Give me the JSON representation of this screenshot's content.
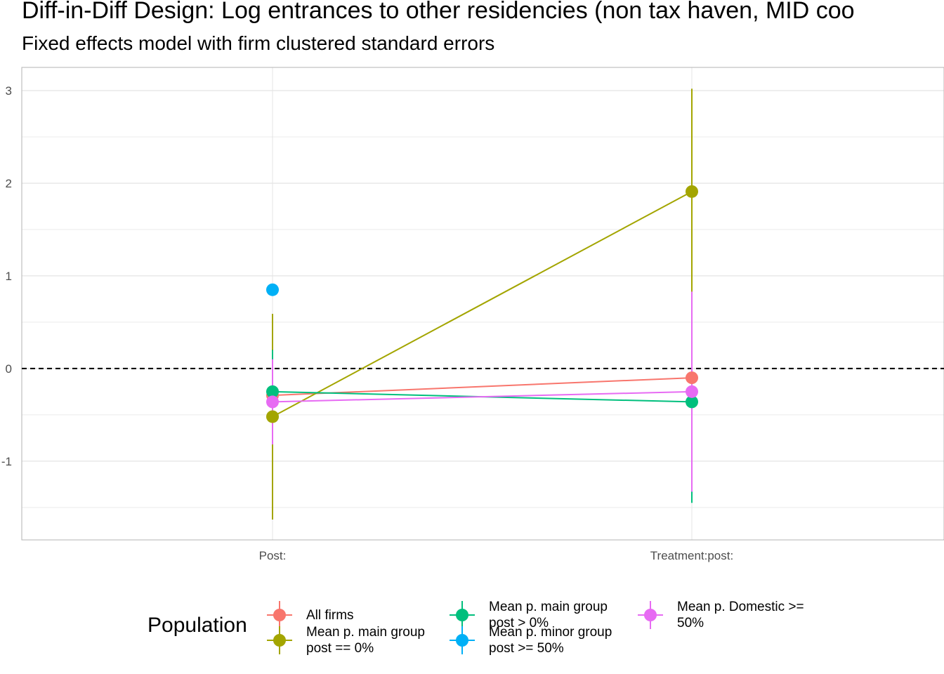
{
  "title": "Diff-in-Diff Design: Log entrances to other residencies (non tax haven, MID coo",
  "subtitle": "Fixed effects model with firm clustered standard errors",
  "chart_data": {
    "type": "scatter",
    "title": "Diff-in-Diff Design: Log entrances to other residencies (non tax haven, MID coo",
    "subtitle": "Fixed effects model with firm clustered standard errors",
    "categories": [
      "Post:",
      "Treatment:post:"
    ],
    "xlabel": "",
    "ylabel": "",
    "ylim": [
      -1.85,
      3.25
    ],
    "yticks": [
      -1,
      0,
      1,
      2,
      3
    ],
    "grid": true,
    "reference_line": {
      "y": 0,
      "style": "dashed"
    },
    "series": [
      {
        "name": "All firms",
        "color": "#F8766D",
        "values": [
          -0.29,
          -0.1
        ],
        "lower": [
          -0.55,
          -0.72
        ],
        "upper": [
          -0.03,
          0.52
        ]
      },
      {
        "name": "Mean p. main group\npost == 0%",
        "color": "#A3A500",
        "values": [
          -0.52,
          1.91
        ],
        "lower": [
          -1.63,
          0.8
        ],
        "upper": [
          0.59,
          3.02
        ]
      },
      {
        "name": "Mean p. main group\npost > 0%",
        "color": "#00BF7D",
        "values": [
          -0.25,
          -0.36
        ],
        "lower": [
          -0.7,
          -1.45
        ],
        "upper": [
          0.2,
          0.73
        ]
      },
      {
        "name": "Mean p. minor group\npost >= 50%",
        "color": "#00B0F6",
        "values": [
          0.85,
          null
        ],
        "lower": [
          0.85,
          null
        ],
        "upper": [
          0.85,
          null
        ]
      },
      {
        "name": "Mean p. Domestic >=\n50%",
        "color": "#E76BF3",
        "values": [
          -0.36,
          -0.25
        ],
        "lower": [
          -0.82,
          -1.33
        ],
        "upper": [
          0.1,
          0.83
        ]
      }
    ],
    "legend": {
      "title": "Population",
      "position": "bottom"
    }
  }
}
